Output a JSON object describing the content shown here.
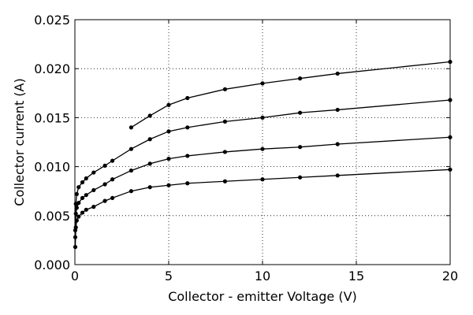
{
  "chart_data": {
    "type": "line",
    "title": "",
    "xlabel": "Collector - emitter Voltage (V)",
    "ylabel": "Collector current (A)",
    "xlim": [
      0,
      20
    ],
    "ylim": [
      0,
      0.025
    ],
    "x_ticks": [
      "0",
      "5",
      "10",
      "15",
      "20"
    ],
    "y_ticks": [
      "0.000",
      "0.005",
      "0.010",
      "0.015",
      "0.020",
      "0.025"
    ],
    "grid": true,
    "grid_style": "dotted",
    "legend": "none",
    "series": [
      {
        "color": "#000000",
        "points": [
          [
            0.02,
            0.0018
          ],
          [
            0.05,
            0.0038
          ],
          [
            0.1,
            0.0045
          ],
          [
            0.2,
            0.0049
          ],
          [
            0.4,
            0.0053
          ],
          [
            0.6,
            0.0056
          ],
          [
            1,
            0.0059
          ],
          [
            1.6,
            0.0065
          ],
          [
            2,
            0.0068
          ],
          [
            3,
            0.0075
          ],
          [
            4,
            0.0079
          ],
          [
            5,
            0.0081
          ],
          [
            6,
            0.0083
          ],
          [
            8,
            0.0085
          ],
          [
            10,
            0.0087
          ],
          [
            12,
            0.0089
          ],
          [
            14,
            0.0091
          ],
          [
            20,
            0.0097
          ]
        ]
      },
      {
        "color": "#000000",
        "points": [
          [
            0.02,
            0.0028
          ],
          [
            0.05,
            0.0052
          ],
          [
            0.1,
            0.0058
          ],
          [
            0.2,
            0.0063
          ],
          [
            0.4,
            0.0068
          ],
          [
            0.6,
            0.0071
          ],
          [
            1,
            0.0076
          ],
          [
            1.6,
            0.0082
          ],
          [
            2,
            0.0087
          ],
          [
            3,
            0.0096
          ],
          [
            4,
            0.0103
          ],
          [
            5,
            0.0108
          ],
          [
            6,
            0.0111
          ],
          [
            8,
            0.0115
          ],
          [
            10,
            0.0118
          ],
          [
            12,
            0.012
          ],
          [
            14,
            0.0123
          ],
          [
            20,
            0.013
          ]
        ]
      },
      {
        "color": "#000000",
        "points": [
          [
            0.02,
            0.0035
          ],
          [
            0.05,
            0.0062
          ],
          [
            0.1,
            0.0072
          ],
          [
            0.2,
            0.0079
          ],
          [
            0.4,
            0.0084
          ],
          [
            0.6,
            0.0088
          ],
          [
            1,
            0.0094
          ],
          [
            1.6,
            0.0101
          ],
          [
            2,
            0.0106
          ],
          [
            3,
            0.0118
          ],
          [
            4,
            0.0128
          ],
          [
            5,
            0.0136
          ],
          [
            6,
            0.014
          ],
          [
            8,
            0.0146
          ],
          [
            10,
            0.015
          ],
          [
            12,
            0.0155
          ],
          [
            14,
            0.0158
          ],
          [
            20,
            0.0168
          ]
        ]
      },
      {
        "color": "#000000",
        "points": [
          [
            3,
            0.014
          ],
          [
            4,
            0.0152
          ],
          [
            5,
            0.0163
          ],
          [
            6,
            0.017
          ],
          [
            8,
            0.0179
          ],
          [
            10,
            0.0185
          ],
          [
            12,
            0.019
          ],
          [
            14,
            0.0195
          ],
          [
            20,
            0.0207
          ]
        ]
      }
    ]
  }
}
